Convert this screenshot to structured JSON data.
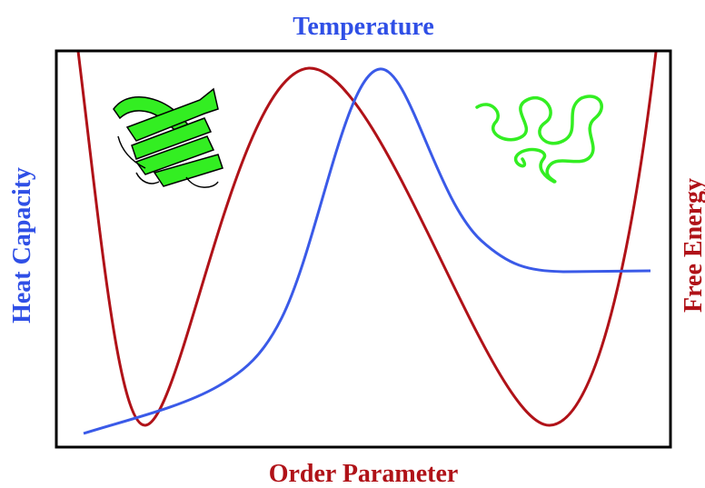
{
  "top_label": "Temperature",
  "bottom_label": "Order Parameter",
  "left_label": "Heat Capacity",
  "right_label": "Free Energy"
}
